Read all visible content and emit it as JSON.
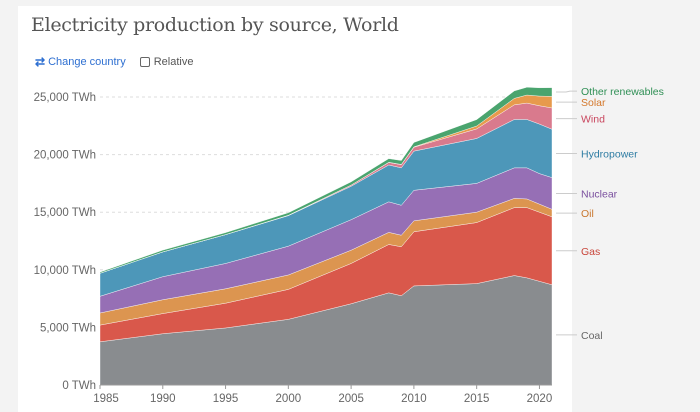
{
  "header": {
    "title": "Electricity production by source, World"
  },
  "controls": {
    "change_country": "Change country",
    "relative": "Relative",
    "change_icon": "swap-arrows-icon"
  },
  "chart_data": {
    "type": "area",
    "stacked": true,
    "title": "Electricity production by source, World",
    "xlim": [
      1985,
      2021
    ],
    "ylim": [
      0,
      25000
    ],
    "y_unit": "TWh",
    "grid": "horizontal dashed",
    "legend_placement": "right (inline labels)",
    "x_ticks": [
      "1985",
      "1990",
      "1995",
      "2000",
      "2005",
      "2010",
      "2015",
      "2020"
    ],
    "y_ticks": [
      "0 TWh",
      "5,000 TWh",
      "10,000 TWh",
      "15,000 TWh",
      "20,000 TWh",
      "25,000 TWh"
    ],
    "x": [
      1985,
      1990,
      1995,
      2000,
      2005,
      2008,
      2009,
      2010,
      2015,
      2018,
      2019,
      2020,
      2021
    ],
    "series": [
      {
        "name": "Coal",
        "color": "#898c8f",
        "label_color": "#666666",
        "values": [
          3750,
          4450,
          4950,
          5700,
          7050,
          8000,
          7750,
          8600,
          8800,
          9500,
          9300,
          9000,
          8700
        ]
      },
      {
        "name": "Gas",
        "color": "#d9584b",
        "label_color": "#c8453a",
        "values": [
          1450,
          1750,
          2150,
          2600,
          3500,
          4200,
          4250,
          4700,
          5300,
          5900,
          6100,
          6000,
          5900
        ]
      },
      {
        "name": "Oil",
        "color": "#dc9550",
        "label_color": "#c9772e",
        "values": [
          1050,
          1200,
          1250,
          1250,
          1150,
          1050,
          1000,
          950,
          900,
          800,
          750,
          700,
          650
        ]
      },
      {
        "name": "Nuclear",
        "color": "#966fb5",
        "label_color": "#7a4f9e",
        "values": [
          1450,
          2000,
          2200,
          2500,
          2650,
          2650,
          2600,
          2650,
          2500,
          2650,
          2700,
          2650,
          2750
        ]
      },
      {
        "name": "Hydropower",
        "color": "#4d97b9",
        "label_color": "#2e7ca3",
        "values": [
          2000,
          2150,
          2500,
          2650,
          2900,
          3200,
          3250,
          3400,
          3900,
          4200,
          4200,
          4300,
          4200
        ]
      },
      {
        "name": "Wind",
        "color": "#d97a8d",
        "label_color": "#c9465e",
        "values": [
          0,
          4,
          8,
          30,
          100,
          220,
          275,
          340,
          830,
          1270,
          1420,
          1590,
          1850
        ]
      },
      {
        "name": "Solar",
        "color": "#e79a4c",
        "label_color": "#d4772a",
        "values": [
          0,
          0,
          0,
          1,
          4,
          12,
          20,
          32,
          250,
          560,
          700,
          840,
          1000
        ]
      },
      {
        "name": "Other renewables",
        "color": "#4aa46e",
        "label_color": "#2f8f55",
        "values": [
          100,
          150,
          170,
          220,
          280,
          320,
          340,
          380,
          560,
          650,
          680,
          720,
          760
        ]
      }
    ]
  }
}
